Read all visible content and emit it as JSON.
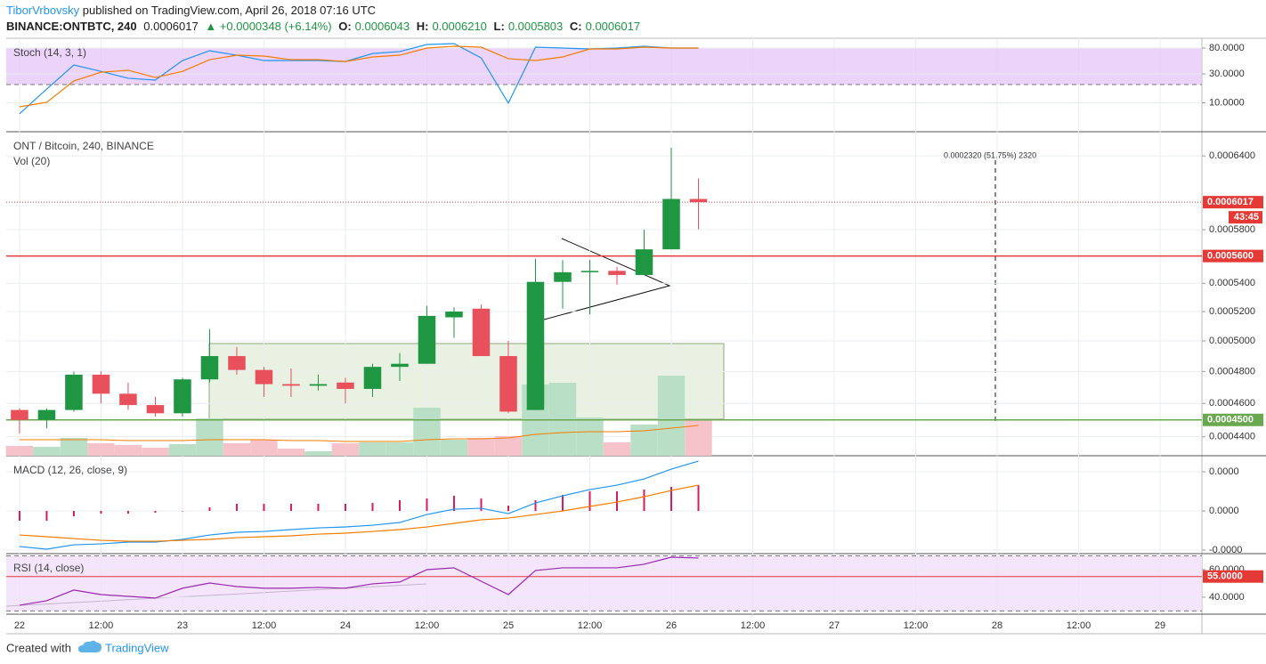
{
  "header": {
    "author": "TiborVrbovsky",
    "published": "published on TradingView.com, April 26, 2018 07:16 UTC",
    "symbol": "BINANCE:ONTBTC, 240",
    "last": "0.0006017",
    "change": "▲ +0.0000348 (+6.14%)",
    "ohlc": [
      {
        "key": "O:",
        "value": "0.0006043"
      },
      {
        "key": "H:",
        "value": "0.0006210"
      },
      {
        "key": "L:",
        "value": "0.0005803"
      },
      {
        "key": "C:",
        "value": "0.0006017"
      }
    ]
  },
  "chart_data": [
    {
      "type": "line",
      "title": "Stoch (14, 3, 1)",
      "log_scale": true,
      "ylim": [
        3.34,
        116
      ],
      "yticks": [
        {
          "value": 80,
          "label": "80.0000"
        },
        {
          "value": 30,
          "label": "30.0000"
        },
        {
          "value": 10,
          "label": "10.0000"
        }
      ],
      "band": [
        20,
        80
      ],
      "band_color": "#e6c8f7",
      "grid": true,
      "series": [
        {
          "color": "#2196f3",
          "values": [
            6.6,
            16.9,
            42,
            33,
            25.4,
            23.7,
            49.8,
            72.3,
            61,
            49.8,
            49.8,
            49.8,
            48,
            65,
            70,
            91.6,
            94.7,
            55,
            9.9,
            82.7,
            80,
            77.3,
            80,
            85.6,
            80,
            80
          ]
        },
        {
          "color": "#f57c00",
          "values": [
            8.6,
            10.2,
            23,
            32,
            34.4,
            26.2,
            33,
            51.5,
            61,
            59,
            51.5,
            51.5,
            48,
            57,
            61,
            80,
            85.6,
            82.7,
            53.4,
            49.8,
            57,
            77.3,
            77.3,
            82.7,
            80,
            80
          ]
        }
      ]
    },
    {
      "type": "candlestick",
      "title": "ONT / Bitcoin, 240, BINANCE",
      "log_scale": true,
      "grid": true,
      "x": [
        0,
        1,
        2,
        3,
        4,
        5,
        6,
        7,
        8,
        9,
        10,
        11,
        12,
        13,
        14,
        15,
        16,
        17,
        18,
        19,
        20,
        21,
        22,
        23,
        24,
        25
      ],
      "xlim": [
        -0.49,
        43.54
      ],
      "xticks": [
        {
          "value": 0,
          "label": "22"
        },
        {
          "value": 3,
          "label": "12:00"
        },
        {
          "value": 6,
          "label": "23"
        },
        {
          "value": 9,
          "label": "12:00"
        },
        {
          "value": 12,
          "label": "24"
        },
        {
          "value": 15,
          "label": "12:00"
        },
        {
          "value": 18,
          "label": "25"
        },
        {
          "value": 21,
          "label": "12:00"
        },
        {
          "value": 24,
          "label": "26"
        },
        {
          "value": 27,
          "label": "12:00"
        },
        {
          "value": 30,
          "label": "27"
        },
        {
          "value": 33,
          "label": "12:00"
        },
        {
          "value": 36,
          "label": "28"
        },
        {
          "value": 39,
          "label": "12:00"
        },
        {
          "value": 42,
          "label": "29"
        }
      ],
      "ylim": [
        0.000429,
        0.000661
      ],
      "yticks": [
        {
          "value": 0.00064,
          "label": "0.0006400"
        },
        {
          "value": 0.00058,
          "label": "0.0005800"
        },
        {
          "value": 0.00054,
          "label": "0.0005400"
        },
        {
          "value": 0.00052,
          "label": "0.0005200"
        },
        {
          "value": 0.0005,
          "label": "0.0005000"
        },
        {
          "value": 0.00048,
          "label": "0.0004800"
        },
        {
          "value": 0.00046,
          "label": "0.0004600"
        },
        {
          "value": 0.00044,
          "label": "0.0004400"
        }
      ],
      "open": [
        0.000456,
        0.00045,
        0.000456,
        0.000478,
        0.000466,
        0.000459,
        0.000454,
        0.000475,
        0.00049,
        0.000481,
        0.000472,
        0.000471,
        0.000473,
        0.000469,
        0.000483,
        0.000485,
        0.000516,
        0.000522,
        0.00049,
        0.000456,
        0.000541,
        0.000548,
        0.000549,
        0.000546,
        0.000565,
        0.0006043
      ],
      "high": [
        0.000457,
        0.000457,
        0.00048,
        0.00048,
        0.000473,
        0.000464,
        0.000476,
        0.000508,
        0.000496,
        0.000483,
        0.000482,
        0.000478,
        0.000476,
        0.000485,
        0.000492,
        0.000524,
        0.000523,
        0.000525,
        0.0005,
        0.000558,
        0.000557,
        0.000557,
        0.000552,
        0.00058,
        0.000647,
        0.000621
      ],
      "low": [
        0.000442,
        0.000445,
        0.000455,
        0.00046,
        0.000456,
        0.000452,
        0.000452,
        0.000473,
        0.000478,
        0.000464,
        0.000464,
        0.000468,
        0.00046,
        0.000464,
        0.000474,
        0.000485,
        0.000502,
        0.00049,
        0.000454,
        0.000456,
        0.000522,
        0.000518,
        0.000539,
        0.000546,
        0.000565,
        0.0005803
      ],
      "close": [
        0.00045,
        0.000456,
        0.000478,
        0.000466,
        0.000459,
        0.000454,
        0.000475,
        0.00049,
        0.000481,
        0.000472,
        0.000471,
        0.000472,
        0.000469,
        0.000483,
        0.000485,
        0.000517,
        0.00052,
        0.00049,
        0.000455,
        0.000541,
        0.000548,
        0.000549,
        0.000546,
        0.000565,
        0.0006043,
        0.0006017
      ],
      "up_color": "#1e9642",
      "down_color": "#e8505b",
      "volume": {
        "name": "Vol (20)",
        "ylim": [
          0,
          364
        ],
        "up_color": "#b9e0c6",
        "down_color": "#f7c3ca",
        "values": [
          11,
          10,
          20,
          14,
          12,
          9,
          13,
          42,
          14,
          18,
          8,
          5,
          14,
          15,
          15,
          54,
          18,
          20,
          22,
          80,
          82,
          43,
          15,
          35,
          90,
          41
        ],
        "ma": {
          "color": "#f57c00",
          "values": [
            18,
            18,
            18,
            18,
            17,
            17,
            17,
            18,
            18,
            18,
            17,
            17,
            16,
            16,
            16,
            18,
            19,
            19,
            20,
            24,
            26,
            27,
            27,
            28,
            31,
            34
          ]
        }
      },
      "levels": [
        {
          "value": 0.00056,
          "label": "0.0005600",
          "color": "#e53935"
        },
        {
          "value": 0.00045,
          "label": "0.0004500",
          "color": "#6aa84f"
        }
      ],
      "last_price": {
        "value": 0.0006017,
        "color": "#e53935",
        "countdown": "43:45"
      },
      "annotation": "0.0002320 (51.75%) 2320"
    },
    {
      "type": "line",
      "title": "MACD (12, 26, close, 9)",
      "grid": true,
      "ylim": [
        -1.09e-05,
        1.41e-05
      ],
      "yticks": [
        {
          "value": 1e-05,
          "label": "0.0000"
        },
        {
          "value": 0,
          "label": "0.0000"
        },
        {
          "value": -1e-05,
          "label": "-0.0000"
        }
      ],
      "histogram": {
        "color": "#d81b60",
        "values": [
          -2.5e-06,
          -2.5e-06,
          -1.36e-06,
          -6.8e-07,
          -6.8e-07,
          -4.5e-07,
          0,
          9.1e-07,
          1.82e-06,
          1.82e-06,
          1.82e-06,
          1.82e-06,
          1.82e-06,
          2.05e-06,
          2.73e-06,
          3.18e-06,
          3.86e-06,
          3.18e-06,
          1.36e-06,
          2.73e-06,
          4.09e-06,
          5e-06,
          5e-06,
          5.45e-06,
          6.14e-06,
          6.59e-06
        ]
      },
      "series": [
        {
          "color": "#2196f3",
          "values": [
            -9.09e-06,
            -9.77e-06,
            -8.64e-06,
            -8.41e-06,
            -7.95e-06,
            -7.95e-06,
            -7.27e-06,
            -6.14e-06,
            -5.45e-06,
            -5.23e-06,
            -4.77e-06,
            -4.32e-06,
            -4.09e-06,
            -3.64e-06,
            -2.95e-06,
            -9.1e-07,
            4.5e-07,
            6.8e-07,
            -6.8e-07,
            2.05e-06,
            3.86e-06,
            5.45e-06,
            6.59e-06,
            8.18e-06,
            1.068e-05,
            1.273e-05
          ]
        },
        {
          "color": "#f57c00",
          "values": [
            -6.14e-06,
            -6.59e-06,
            -7.05e-06,
            -7.5e-06,
            -7.73e-06,
            -7.73e-06,
            -7.5e-06,
            -7.27e-06,
            -6.82e-06,
            -6.59e-06,
            -6.36e-06,
            -5.91e-06,
            -5.68e-06,
            -5.23e-06,
            -4.77e-06,
            -4.09e-06,
            -3.18e-06,
            -2.27e-06,
            -1.82e-06,
            -9.1e-07,
            0,
            1.14e-06,
            2.27e-06,
            3.64e-06,
            5.23e-06,
            6.59e-06
          ]
        }
      ]
    },
    {
      "type": "line",
      "title": "RSI (14, close)",
      "grid": true,
      "ylim": [
        27.7,
        71.6
      ],
      "yticks": [
        {
          "value": 60,
          "label": "60.0000"
        },
        {
          "value": 40,
          "label": "40.0000"
        }
      ],
      "band": [
        30,
        70
      ],
      "band_color": "#f1ddfb",
      "level": {
        "value": 55,
        "label": "55.0000",
        "color": "#e53935"
      },
      "series": [
        {
          "color": "#9c27b0",
          "values": [
            34.2,
            37.4,
            45.2,
            41.9,
            40.6,
            39.4,
            46.5,
            50.3,
            47.7,
            46.5,
            46.5,
            47.1,
            46.5,
            49.7,
            51,
            60,
            61.3,
            51.6,
            41.9,
            59.4,
            61.3,
            61.3,
            61.3,
            63.9,
            69,
            68.4
          ]
        }
      ]
    }
  ],
  "footer": {
    "created": "Created with",
    "brand": "TradingView"
  }
}
